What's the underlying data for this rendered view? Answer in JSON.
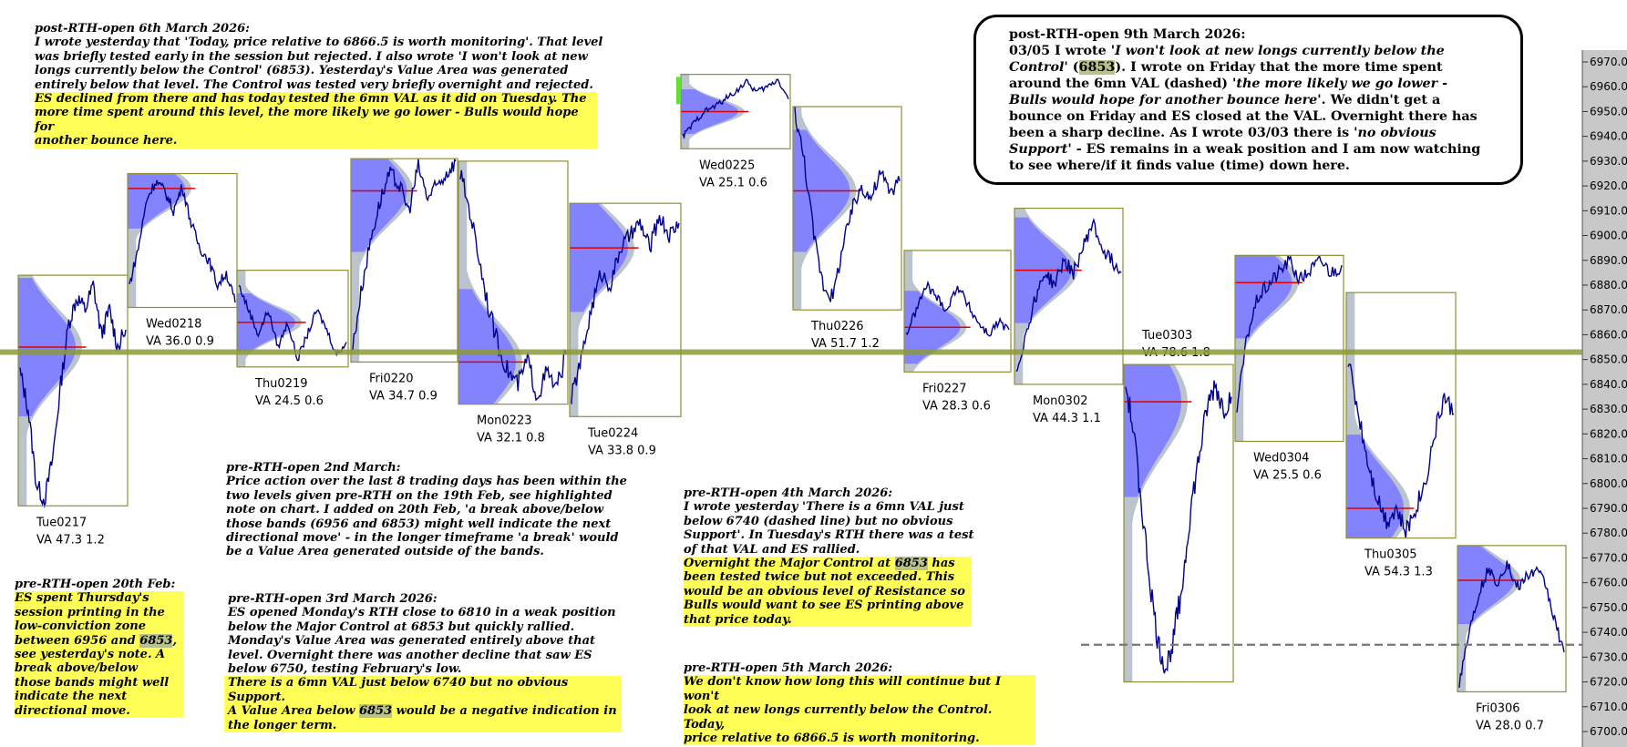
{
  "chart_data": {
    "type": "line",
    "description_axis": "right",
    "ylim": [
      6697,
      6977
    ],
    "y_ticks": [
      6970,
      6960,
      6950,
      6940,
      6930,
      6920,
      6910,
      6900,
      6890,
      6880,
      6870,
      6860,
      6850,
      6840,
      6830,
      6820,
      6810,
      6800,
      6790,
      6780,
      6770,
      6760,
      6750,
      6740,
      6730,
      6720,
      6710,
      6700
    ],
    "y_tick_labels": [
      "6970.0",
      "6960.0",
      "6950.0",
      "6940.0",
      "6930.0",
      "6920.0",
      "6910.0",
      "6900.0",
      "6890.0",
      "6880.0",
      "6870.0",
      "6860.0",
      "6850.0",
      "6840.0",
      "6830.0",
      "6820.0",
      "6810.0",
      "6800.0",
      "6790.0",
      "6780.0",
      "6770.0",
      "6760.0",
      "6750.0",
      "6740.0",
      "6730.0",
      "6720.0",
      "6710.0",
      "6700.0"
    ],
    "control_level": 6853,
    "val_dashed_level": 6735,
    "sessions": [
      {
        "name": "Tue0217",
        "va": "VA 47.3  1.2",
        "high": 6884,
        "low": 6791,
        "control": 6855,
        "path": [
          6845,
          6830,
          6800,
          6793,
          6810,
          6840,
          6865,
          6875,
          6870,
          6880,
          6860,
          6870,
          6855,
          6862
        ]
      },
      {
        "name": "Wed0218",
        "va": "VA 36.0  0.9",
        "high": 6925,
        "low": 6871,
        "control": 6919,
        "path": [
          6880,
          6895,
          6915,
          6922,
          6918,
          6910,
          6920,
          6905,
          6895,
          6890,
          6880,
          6885,
          6873
        ]
      },
      {
        "name": "Thu0219",
        "va": "VA 24.5  0.6",
        "high": 6886,
        "low": 6847,
        "control": 6865,
        "path": [
          6880,
          6870,
          6860,
          6870,
          6855,
          6865,
          6850,
          6860,
          6870,
          6862,
          6852,
          6857
        ]
      },
      {
        "name": "Fri0220",
        "va": "VA 34.7  0.9",
        "high": 6931,
        "low": 6849,
        "control": 6918,
        "path": [
          6855,
          6880,
          6900,
          6915,
          6925,
          6920,
          6910,
          6928,
          6915,
          6920,
          6925,
          6930
        ]
      },
      {
        "name": "Mon0223",
        "va": "VA 32.1  0.8",
        "high": 6930,
        "low": 6832,
        "control": 6849,
        "path": [
          6925,
          6910,
          6890,
          6870,
          6855,
          6845,
          6840,
          6850,
          6835,
          6845,
          6838,
          6852
        ]
      },
      {
        "name": "Tue0224",
        "va": "VA 33.8  0.9",
        "high": 6913,
        "low": 6827,
        "control": 6895,
        "path": [
          6835,
          6850,
          6870,
          6885,
          6880,
          6895,
          6900,
          6905,
          6895,
          6908,
          6900,
          6905
        ]
      },
      {
        "name": "Wed0225",
        "va": "VA 25.1  0.6",
        "high": 6965,
        "low": 6935,
        "control": 6950,
        "path": [
          6940,
          6945,
          6950,
          6952,
          6955,
          6958,
          6962,
          6958,
          6960,
          6963,
          6955
        ]
      },
      {
        "name": "Thu0226",
        "va": "VA 51.7  1.2",
        "high": 6952,
        "low": 6870,
        "control": 6918,
        "path": [
          6950,
          6930,
          6900,
          6880,
          6875,
          6895,
          6910,
          6920,
          6915,
          6925,
          6918,
          6922
        ]
      },
      {
        "name": "Fri0227",
        "va": "VA 28.3  0.6",
        "high": 6894,
        "low": 6845,
        "control": 6863,
        "path": [
          6860,
          6870,
          6880,
          6875,
          6870,
          6880,
          6872,
          6865,
          6860,
          6865,
          6862
        ]
      },
      {
        "name": "Mon0302",
        "va": "VA 44.3  1.1",
        "high": 6911,
        "low": 6840,
        "control": 6886,
        "path": [
          6845,
          6860,
          6875,
          6885,
          6880,
          6890,
          6885,
          6895,
          6905,
          6895,
          6890,
          6885
        ]
      },
      {
        "name": "Tue0303",
        "va": "VA 78.6  1.8",
        "high": 6848,
        "low": 6720,
        "control": 6833,
        "path": [
          6840,
          6820,
          6790,
          6760,
          6735,
          6725,
          6740,
          6760,
          6790,
          6810,
          6830,
          6840,
          6830,
          6835
        ]
      },
      {
        "name": "Wed0304",
        "va": "VA 25.5  0.6",
        "high": 6892,
        "low": 6817,
        "control": 6881,
        "path": [
          6830,
          6860,
          6875,
          6880,
          6885,
          6890,
          6882,
          6886,
          6890,
          6885,
          6888
        ]
      },
      {
        "name": "Thu0305",
        "va": "VA 54.3  1.3",
        "high": 6877,
        "low": 6778,
        "control": 6790,
        "path": [
          6850,
          6830,
          6810,
          6795,
          6785,
          6790,
          6780,
          6790,
          6800,
          6820,
          6835,
          6828
        ]
      },
      {
        "name": "Fri0306",
        "va": "VA 28.0  0.7",
        "high": 6775,
        "low": 6716,
        "control": 6761,
        "path": [
          6720,
          6740,
          6755,
          6765,
          6760,
          6768,
          6758,
          6762,
          6765,
          6760,
          6745,
          6732
        ]
      }
    ]
  },
  "notes": {
    "feb20": {
      "title": "pre-RTH-open 20th Feb:",
      "lines": [
        "ES spent Thursday's",
        "session printing in the",
        "low-conviction zone",
        "between 6956 and ",
        "6853",
        ", ",
        "see yesterday's note.   A",
        "break above/below",
        "those bands might well",
        "indicate the next",
        "directional move."
      ]
    },
    "mar6": {
      "title": "post-RTH-open 6th March 2026:",
      "lines": [
        "I wrote yesterday that 'Today, price relative to 6866.5 is worth monitoring'. That level",
        "was briefly tested early in the session but rejected. I also wrote 'I won't look at new",
        "longs currently below the Control' (6853). Yesterday's Value Area was generated",
        "entirely below that level. The Control was tested very briefly overnight and rejected."
      ],
      "hl_lines": [
        "ES declined from there and has today tested the 6mn VAL as it did on Tuesday. The",
        "more time spent around this level, the more likely we go lower - Bulls would hope for",
        "another bounce here."
      ]
    },
    "mar2": {
      "title": "pre-RTH-open 2nd March:",
      "lines": [
        "Price action over the last 8 trading days has been within the",
        "two levels given pre-RTH on the 19th Feb, see highlighted",
        "note on chart. I added on 20th Feb, 'a break above/below",
        "those bands (6956 and 6853) might well indicate the next",
        "directional move' - in the longer timeframe 'a break' would",
        "be a Value Area generated outside of the bands."
      ]
    },
    "mar3": {
      "title": "pre-RTH-open 3rd March 2026:",
      "lines": [
        "ES opened Monday's RTH close to 6810 in a weak position",
        "below the Major Control at 6853 but quickly rallied.",
        "Monday's Value Area was generated entirely above that",
        "level. Overnight there was another decline that saw ES",
        "below 6750, testing February's low."
      ],
      "hl_a": "There is a 6mn VAL just below 6740 but no obvious Support.",
      "hl_b1": "A Value Area below ",
      "hl_b2": "6853",
      "hl_b3": " would be a negative indication in",
      "hl_c": "the longer term."
    },
    "mar4": {
      "title": "pre-RTH-open 4th March 2026:",
      "lines": [
        "I wrote yesterday 'There is a 6mn VAL just",
        "below 6740 (dashed line) but no obvious",
        "Support'. In Tuesday's RTH there was a test",
        "of that VAL and ES rallied."
      ],
      "hl_a1": "Overnight the Major Control at ",
      "hl_a2": "6853",
      "hl_a3": " has",
      "hl_lines": [
        "been tested twice but not exceeded. This",
        "would be an obvious level of Resistance so",
        "Bulls would want to see ES printing above",
        "that price today."
      ]
    },
    "mar5": {
      "title": "pre-RTH-open 5th March 2026:",
      "hl_lines": [
        "We don't know how long this will continue but I won't",
        "look at new longs currently below the Control. Today,",
        "price relative to 6866.5 is worth monitoring."
      ]
    },
    "mar9": {
      "title": "post-RTH-open 9th March 2026:",
      "l1a": "03/05 I wrote '",
      "l1b": "I won't look at new longs currently below the",
      "l2a": "Control",
      "l2b": "' (",
      "l2c": "6853",
      "l2d": ").  I wrote on Friday that the more time spent",
      "l3a": "around the 6mn VAL (dashed) '",
      "l3b": "the more likely we go lower -",
      "l4a": "Bulls would hope for another bounce here",
      "l4b": "'. We didn't get a",
      "l5": "bounce on Friday and ES closed at the VAL. Overnight there has",
      "l6a": "been a sharp decline. As I wrote 03/03 there is '",
      "l6b": "no obvious",
      "l7a": "Support",
      "l7b": "' - ES remains in a weak position and I am now watching",
      "l8": "to see where/if it finds value (time) down here."
    }
  },
  "colors": {
    "price": "#00008b",
    "profile_blue": "#7f7fff",
    "profile_grey": "#b4bcc8",
    "control_red": "#e00000",
    "box": "#8f8f3a",
    "control_band": "#8c9a3c",
    "dashed": "#777777",
    "axis_bg": "#c8c8c8",
    "highlight": "#ffff57",
    "green_mark": "#66dd33"
  }
}
